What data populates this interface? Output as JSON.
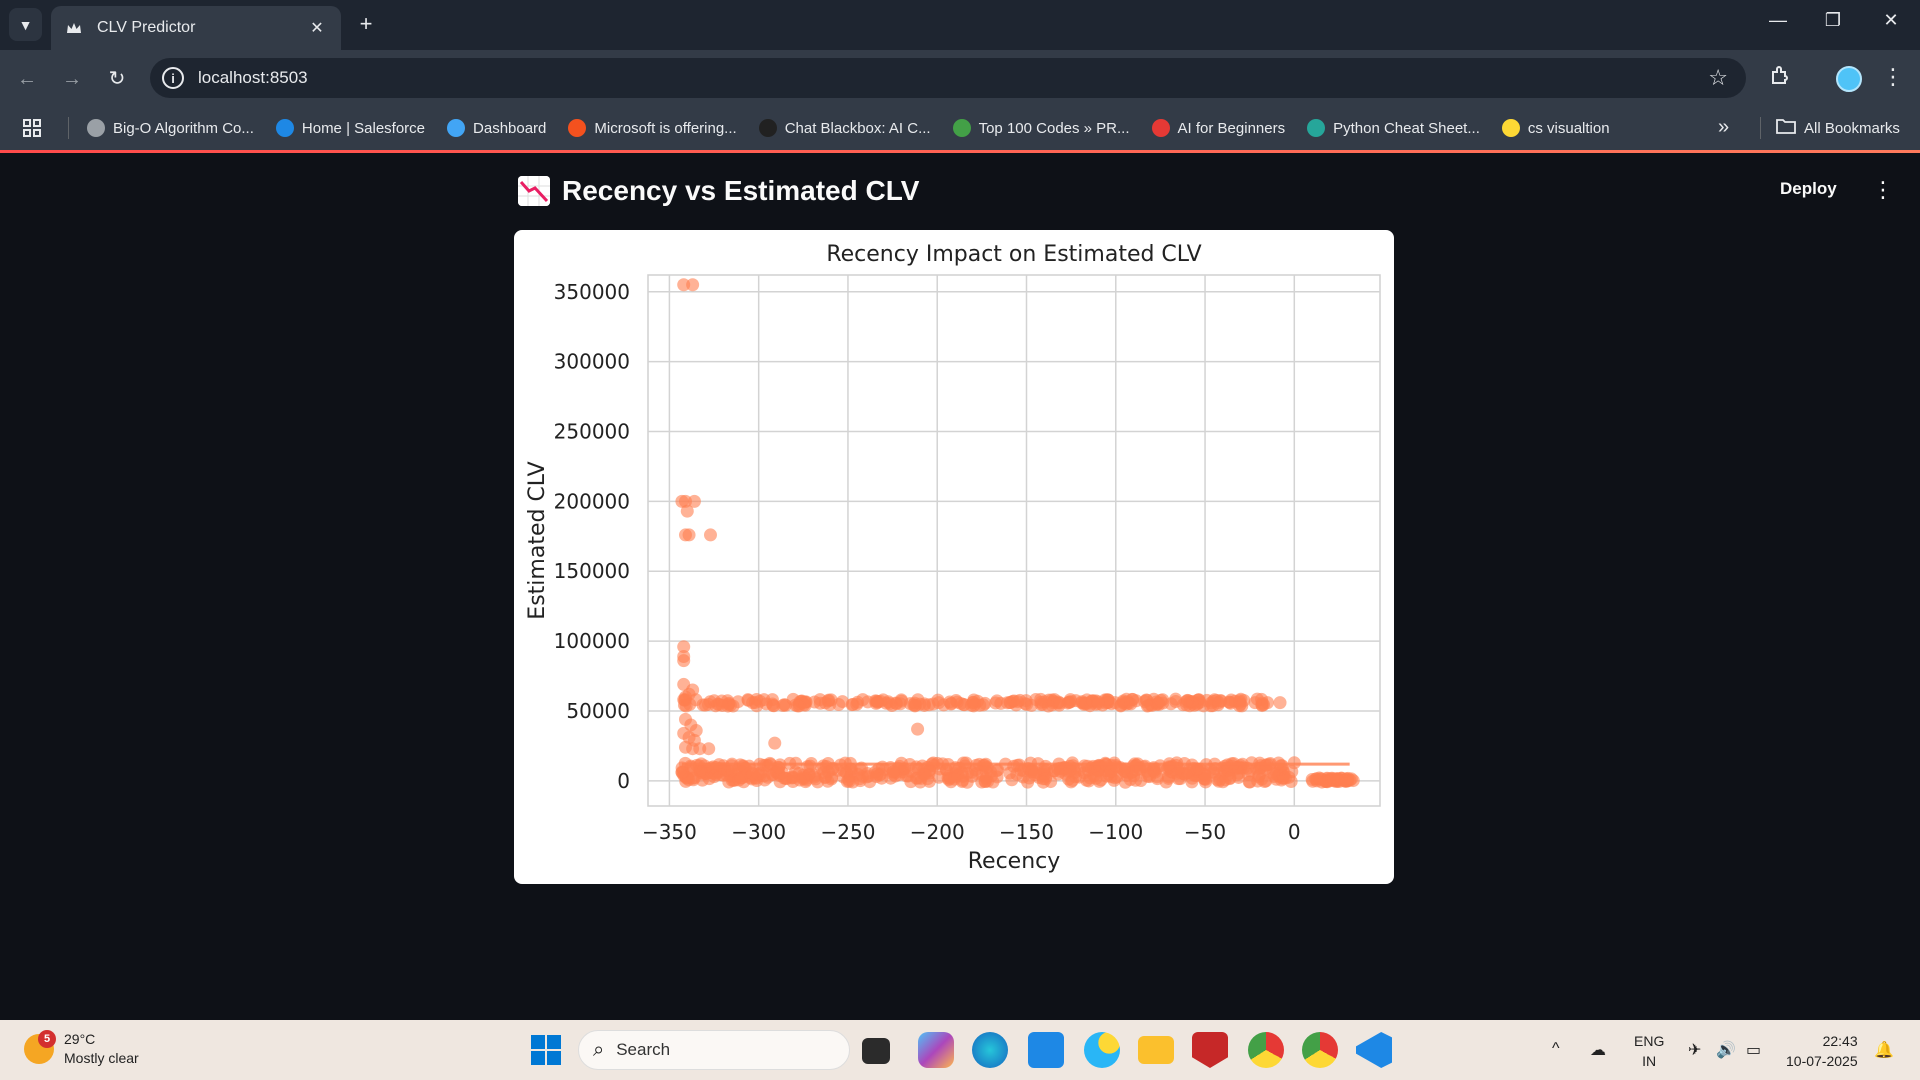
{
  "browser": {
    "tab_title": "CLV Predictor",
    "url": "localhost:8503",
    "bookmarks": [
      {
        "label": "Big-O Algorithm Co...",
        "color": "#9aa0a6"
      },
      {
        "label": "Home | Salesforce",
        "color": "#1e88e5"
      },
      {
        "label": "Dashboard",
        "color": "#42a5f5"
      },
      {
        "label": "Microsoft is offering...",
        "color": "#f4511e"
      },
      {
        "label": "Chat Blackbox: AI C...",
        "color": "#212121"
      },
      {
        "label": "Top 100 Codes » PR...",
        "color": "#43a047"
      },
      {
        "label": "AI for Beginners",
        "color": "#e53935"
      },
      {
        "label": "Python Cheat Sheet...",
        "color": "#26a69a"
      },
      {
        "label": "cs visualtion",
        "color": "#fdd835"
      }
    ],
    "all_bookmarks": "All Bookmarks"
  },
  "app": {
    "title": "Recency vs Estimated CLV",
    "deploy": "Deploy"
  },
  "chart_data": {
    "type": "scatter",
    "title": "Recency Impact on Estimated CLV",
    "xlabel": "Recency",
    "ylabel": "Estimated CLV",
    "xlim": [
      -362,
      48
    ],
    "ylim": [
      -18000,
      362000
    ],
    "xticks": [
      -350,
      -300,
      -250,
      -200,
      -150,
      -100,
      -50,
      0
    ],
    "yticks": [
      0,
      50000,
      100000,
      150000,
      200000,
      250000,
      300000,
      350000
    ],
    "xtick_labels": [
      "−350",
      "−300",
      "−250",
      "−200",
      "−150",
      "−100",
      "−50",
      "0"
    ],
    "ytick_labels": [
      "0",
      "50000",
      "100000",
      "150000",
      "200000",
      "250000",
      "300000",
      "350000"
    ],
    "grid": true,
    "color": "#ff7f50",
    "points": [
      [
        -342,
        355000
      ],
      [
        -337,
        355000
      ],
      [
        -343,
        200000
      ],
      [
        -341,
        200000
      ],
      [
        -336,
        200000
      ],
      [
        -340,
        193000
      ],
      [
        -341,
        176000
      ],
      [
        -339,
        176000
      ],
      [
        -327,
        176000
      ],
      [
        -342,
        96000
      ],
      [
        -342,
        89000
      ],
      [
        -342,
        86000
      ],
      [
        -342,
        69000
      ],
      [
        -337,
        65000
      ],
      [
        -339,
        62000
      ],
      [
        -341,
        60000
      ],
      [
        -341,
        44000
      ],
      [
        -338,
        40000
      ],
      [
        -335,
        36000
      ],
      [
        -342,
        34000
      ],
      [
        -339,
        31000
      ],
      [
        -336,
        29000
      ],
      [
        -341,
        24000
      ],
      [
        -328,
        23000
      ],
      [
        -333,
        23000
      ],
      [
        -337,
        23000
      ],
      [
        -291,
        27000
      ],
      [
        -211,
        37000
      ],
      [
        -22,
        56000
      ],
      [
        -15,
        56000
      ],
      [
        -8,
        56000
      ],
      [
        -100,
        11000
      ],
      [
        -50,
        4000
      ],
      [
        -20,
        3000
      ],
      [
        -5,
        2000
      ],
      [
        10,
        1000
      ],
      [
        14,
        2000
      ],
      [
        18,
        0
      ],
      [
        22,
        1500
      ],
      [
        26,
        500
      ],
      [
        30,
        0
      ],
      [
        33,
        200
      ]
    ],
    "bands": [
      {
        "x_start": -342,
        "x_end": -16,
        "y_center": 56000,
        "spread": 2500,
        "count": 260
      },
      {
        "x_start": -343,
        "x_end": 0,
        "y_center": 6000,
        "spread": 7000,
        "count": 520
      },
      {
        "x_start": 8,
        "x_end": 34,
        "y_center": 500,
        "spread": 1500,
        "count": 40
      }
    ],
    "lines": [
      {
        "x_start": -343,
        "x_end": 31,
        "y": 12000
      }
    ]
  },
  "taskbar": {
    "weather_badge": "5",
    "temperature": "29°C",
    "condition": "Mostly clear",
    "search_placeholder": "Search",
    "lang_top": "ENG",
    "lang_bottom": "IN",
    "time": "22:43",
    "date": "10-07-2025"
  }
}
